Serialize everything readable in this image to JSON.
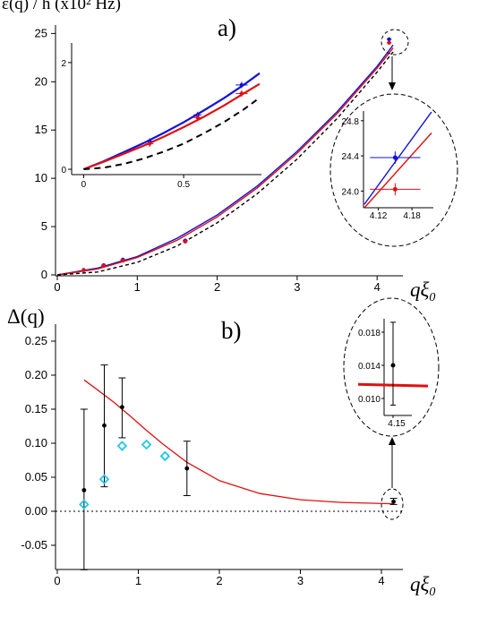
{
  "chart_data": [
    {
      "id": "a",
      "type": "line",
      "panel_label": "a)",
      "ylabel": "ε(q) / h (x10² Hz)",
      "xlabel": "qξ0",
      "xlim": [
        0,
        4.3
      ],
      "ylim": [
        0,
        25.5
      ],
      "xticks": [
        "0",
        "1",
        "2",
        "3",
        "4"
      ],
      "yticks": [
        "0",
        "5",
        "10",
        "15",
        "20",
        "25"
      ],
      "curves": [
        {
          "color": "#1010e0",
          "x": [
            0,
            0.5,
            1,
            1.5,
            2,
            2.5,
            3,
            3.5,
            4,
            4.2
          ],
          "y": [
            0,
            0.7,
            1.9,
            3.8,
            6.2,
            9.2,
            12.8,
            16.9,
            21.6,
            23.8
          ]
        },
        {
          "color": "#e01010",
          "x": [
            0,
            0.5,
            1,
            1.5,
            2,
            2.5,
            3,
            3.5,
            4,
            4.2
          ],
          "y": [
            0,
            0.6,
            1.8,
            3.6,
            6.0,
            9.0,
            12.6,
            16.7,
            21.4,
            23.5
          ]
        },
        {
          "color": "#000000",
          "dash": true,
          "x": [
            0,
            0.5,
            1,
            1.5,
            2,
            2.5,
            3,
            3.5,
            4,
            4.2
          ],
          "y": [
            0,
            0.3,
            1.3,
            3.0,
            5.4,
            8.4,
            12.0,
            16.2,
            21.0,
            23.1
          ]
        }
      ],
      "points": [
        {
          "color": "#1010e0",
          "x": 0.33,
          "y": 0.52,
          "xerr": 0.02,
          "yerr": 0.06
        },
        {
          "color": "#1010e0",
          "x": 0.58,
          "y": 1.0,
          "xerr": 0.03,
          "yerr": 0.08
        },
        {
          "color": "#1010e0",
          "x": 0.82,
          "y": 1.58,
          "xerr": 0.03,
          "yerr": 0.08
        },
        {
          "color": "#1010e0",
          "x": 1.6,
          "y": 3.55,
          "xerr": 0.03,
          "yerr": 0.12
        },
        {
          "color": "#1010e0",
          "x": 4.15,
          "y": 24.4,
          "xerr": 0.03,
          "yerr": 0.08
        },
        {
          "color": "#e01010",
          "x": 0.33,
          "y": 0.48,
          "xerr": 0.02,
          "yerr": 0.06
        },
        {
          "color": "#e01010",
          "x": 0.58,
          "y": 0.95,
          "xerr": 0.03,
          "yerr": 0.08
        },
        {
          "color": "#e01010",
          "x": 0.82,
          "y": 1.48,
          "xerr": 0.03,
          "yerr": 0.08
        },
        {
          "color": "#e01010",
          "x": 1.6,
          "y": 3.45,
          "xerr": 0.03,
          "yerr": 0.12
        },
        {
          "color": "#e01010",
          "x": 4.15,
          "y": 24.05,
          "xerr": 0.03,
          "yerr": 0.08
        }
      ],
      "inset_left": {
        "xlim": [
          -0.06,
          0.88
        ],
        "ylim": [
          -0.1,
          2.3
        ],
        "xticks": [
          "0",
          "0.5"
        ],
        "yticks": [
          "0",
          "2"
        ],
        "curves": [
          {
            "color": "#1010e0",
            "x": [
              0,
              0.1,
              0.2,
              0.3,
              0.4,
              0.5,
              0.6,
              0.7,
              0.8,
              0.88
            ],
            "y": [
              0,
              0.15,
              0.32,
              0.49,
              0.68,
              0.88,
              1.1,
              1.33,
              1.58,
              1.8
            ]
          },
          {
            "color": "#e01010",
            "x": [
              0,
              0.1,
              0.2,
              0.3,
              0.4,
              0.5,
              0.6,
              0.7,
              0.8,
              0.88
            ],
            "y": [
              0,
              0.14,
              0.29,
              0.44,
              0.61,
              0.79,
              0.98,
              1.19,
              1.42,
              1.6
            ]
          },
          {
            "color": "#000000",
            "dash": true,
            "x": [
              0,
              0.1,
              0.2,
              0.3,
              0.4,
              0.5,
              0.6,
              0.7,
              0.8,
              0.88
            ],
            "y": [
              0,
              0.03,
              0.1,
              0.2,
              0.33,
              0.48,
              0.67,
              0.88,
              1.12,
              1.34
            ]
          }
        ],
        "points": [
          {
            "color": "#1010e0",
            "x": 0.33,
            "y": 0.52,
            "xerr": 0.02,
            "yerr": 0.06
          },
          {
            "color": "#1010e0",
            "x": 0.57,
            "y": 1.02,
            "xerr": 0.02,
            "yerr": 0.06
          },
          {
            "color": "#1010e0",
            "x": 0.79,
            "y": 1.58,
            "xerr": 0.03,
            "yerr": 0.06
          },
          {
            "color": "#e01010",
            "x": 0.33,
            "y": 0.48,
            "xerr": 0.02,
            "yerr": 0.06
          },
          {
            "color": "#e01010",
            "x": 0.57,
            "y": 0.97,
            "xerr": 0.02,
            "yerr": 0.06
          },
          {
            "color": "#e01010",
            "x": 0.79,
            "y": 1.42,
            "xerr": 0.03,
            "yerr": 0.06
          }
        ]
      },
      "inset_zoom": {
        "xlim": [
          4.095,
          4.215
        ],
        "ylim": [
          23.8,
          24.92
        ],
        "xticks": [
          "4.12",
          "4.18"
        ],
        "yticks": [
          "24.0",
          "24.4",
          "24.8"
        ],
        "curves": [
          {
            "color": "#1010e0",
            "x": [
              4.095,
              4.215
            ],
            "y": [
              23.85,
              24.9
            ]
          },
          {
            "color": "#e01010",
            "x": [
              4.095,
              4.215
            ],
            "y": [
              23.81,
              24.66
            ]
          }
        ],
        "points": [
          {
            "color": "#1010e0",
            "x": 4.15,
            "y": 24.38,
            "xerr": 0.045,
            "yerr": 0.07
          },
          {
            "color": "#e01010",
            "x": 4.15,
            "y": 24.02,
            "xerr": 0.045,
            "yerr": 0.07
          }
        ]
      }
    },
    {
      "id": "b",
      "type": "scatter",
      "panel_label": "b)",
      "ylabel": "Δ(q)",
      "xlabel": "qξ0",
      "xlim": [
        -0.03,
        4.3
      ],
      "ylim": [
        -0.1,
        0.28
      ],
      "xticks": [
        "0",
        "1",
        "2",
        "3",
        "4"
      ],
      "yticks": [
        "0.25",
        "0.20",
        "0.15",
        "0.10",
        "0.05",
        "0.00",
        "-0.05"
      ],
      "curve": {
        "color": "#e01010",
        "x": [
          0.33,
          0.5,
          0.7,
          0.9,
          1.1,
          1.3,
          1.6,
          2.0,
          2.5,
          3.0,
          3.5,
          4.15
        ],
        "y": [
          0.193,
          0.178,
          0.16,
          0.14,
          0.119,
          0.099,
          0.072,
          0.045,
          0.026,
          0.017,
          0.013,
          0.011
        ]
      },
      "black_points": [
        {
          "x": 0.33,
          "y": 0.031,
          "yerr_low": 0.117,
          "yerr_high": 0.119
        },
        {
          "x": 0.58,
          "y": 0.126,
          "yerr_low": 0.09,
          "yerr_high": 0.089
        },
        {
          "x": 0.8,
          "y": 0.153,
          "yerr_low": 0.045,
          "yerr_high": 0.043
        },
        {
          "x": 1.6,
          "y": 0.063,
          "yerr_low": 0.04,
          "yerr_high": 0.04
        },
        {
          "x": 4.15,
          "y": 0.014,
          "yerr_low": 0.004,
          "yerr_high": 0.005
        }
      ],
      "cyan_points": [
        {
          "x": 0.33,
          "y": 0.01
        },
        {
          "x": 0.58,
          "y": 0.047
        },
        {
          "x": 0.8,
          "y": 0.096
        },
        {
          "x": 1.1,
          "y": 0.098
        },
        {
          "x": 1.33,
          "y": 0.081
        }
      ],
      "inset_zoom": {
        "xlim": [
          4.13,
          4.17
        ],
        "ylim": [
          0.008,
          0.0196
        ],
        "xticks": [
          "4.15"
        ],
        "yticks": [
          "0.018",
          "0.014",
          "0.010"
        ],
        "curve": {
          "color": "#e01010",
          "x": [
            4.13,
            4.17
          ],
          "y": [
            0.0117,
            0.0115
          ]
        },
        "point": {
          "x": 4.15,
          "y": 0.014,
          "yerr_low": 0.0048,
          "yerr_high": 0.0052
        }
      }
    }
  ]
}
